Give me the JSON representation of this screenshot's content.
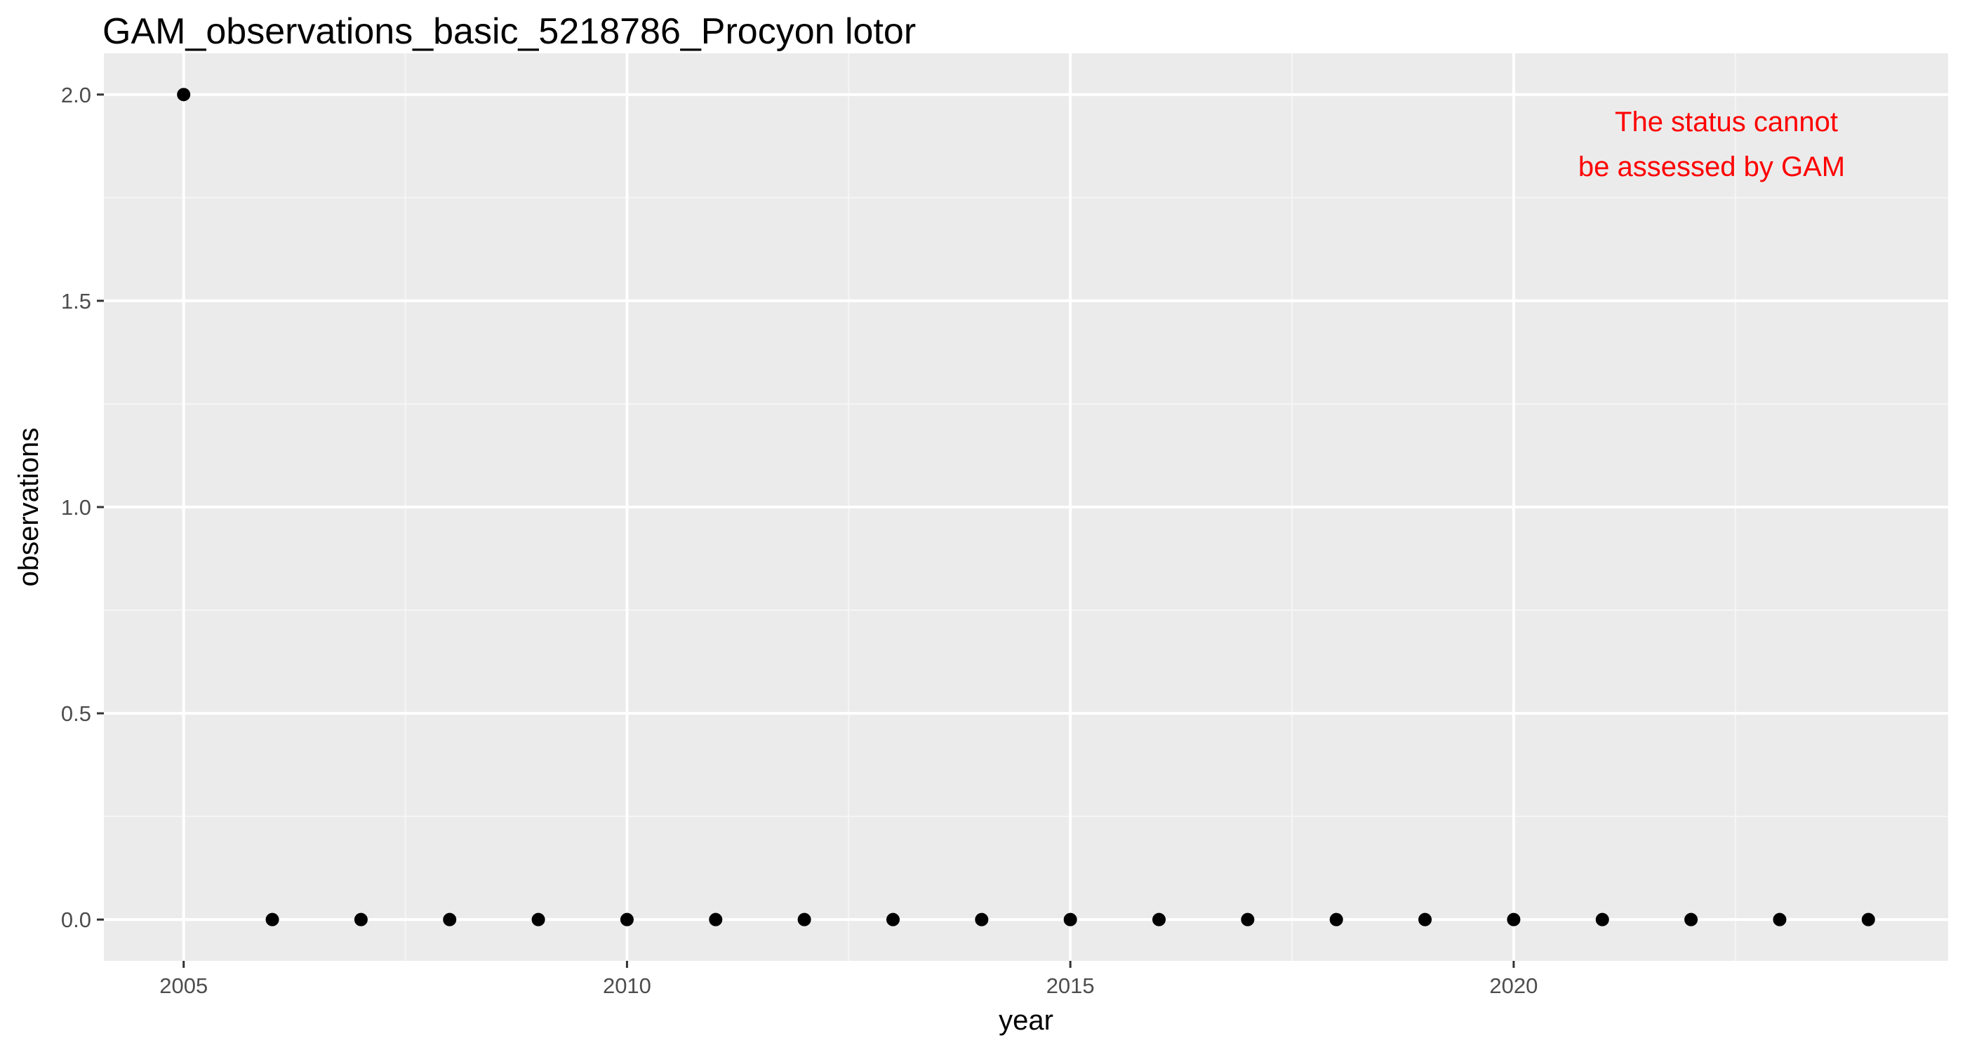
{
  "chart_data": {
    "type": "scatter",
    "title": "GAM_observations_basic_5218786_Procyon lotor",
    "xlabel": "year",
    "ylabel": "observations",
    "xlim": [
      2004.1,
      2024.9
    ],
    "ylim": [
      -0.1,
      2.1
    ],
    "x_ticks": [
      2005,
      2010,
      2015,
      2020
    ],
    "x_tick_labels": [
      "2005",
      "2010",
      "2015",
      "2020"
    ],
    "y_ticks": [
      0,
      0.5,
      1,
      1.5,
      2
    ],
    "y_tick_labels": [
      "0.0",
      "0.5",
      "1.0",
      "1.5",
      "2.0"
    ],
    "grid": true,
    "legend": "none",
    "x": [
      2005,
      2006,
      2007,
      2008,
      2009,
      2010,
      2011,
      2012,
      2013,
      2014,
      2015,
      2016,
      2017,
      2018,
      2019,
      2020,
      2021,
      2022,
      2023,
      2024
    ],
    "y": [
      2,
      0,
      0,
      0,
      0,
      0,
      0,
      0,
      0,
      0,
      0,
      0,
      0,
      0,
      0,
      0,
      0,
      0,
      0,
      0
    ],
    "annotation": {
      "lines": [
        "The status cannot",
        "be assessed by GAM"
      ],
      "position": "top-right",
      "color": "#ff0000"
    },
    "colors": {
      "panel_background": "#ebebeb",
      "grid_major": "#ffffff",
      "grid_minor": "#f5f5f5",
      "points": "#000000",
      "tick_text": "#4d4d4d"
    }
  }
}
